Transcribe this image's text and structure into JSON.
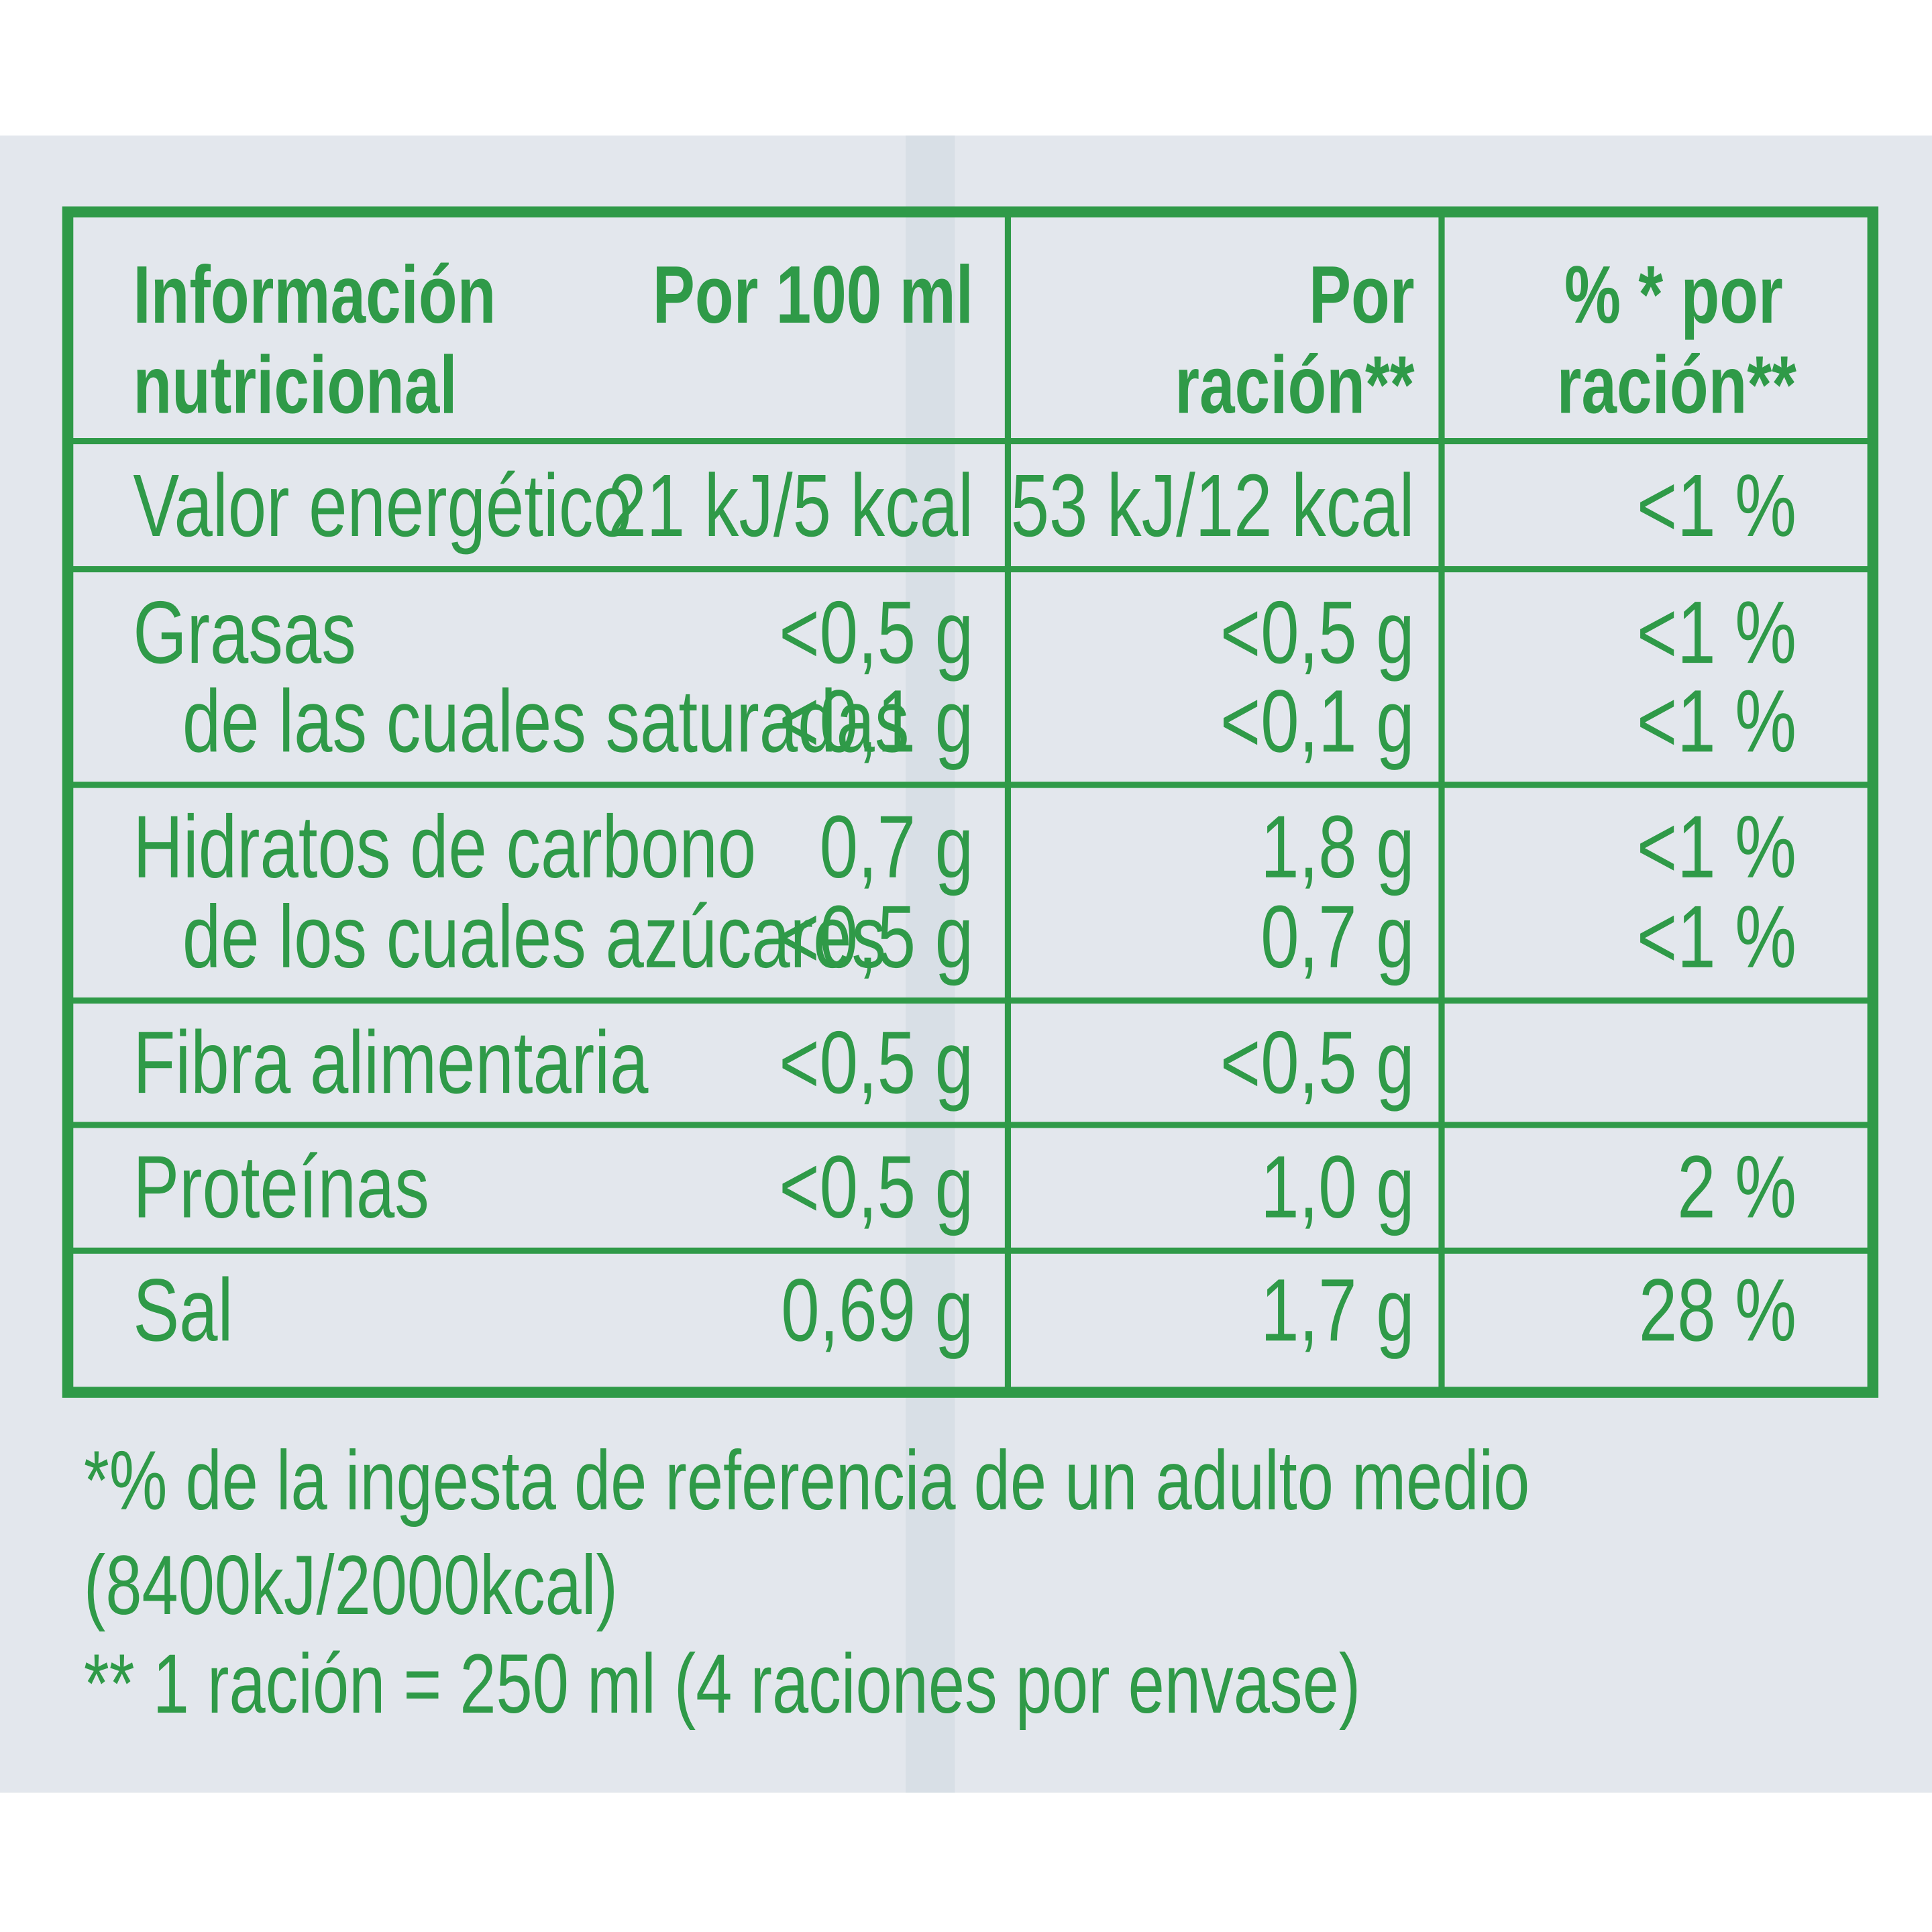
{
  "header": {
    "title": [
      "Información",
      "nutricional"
    ],
    "col1": "Por 100 ml",
    "col2": [
      "Por",
      "ración**"
    ],
    "col3": [
      "% * por",
      "ración**"
    ]
  },
  "rows": [
    {
      "label": "Valor energético",
      "per_100ml": "21 kJ/5 kcal",
      "per_serving": "53 kJ/12 kcal",
      "percent": "<1 %"
    },
    {
      "label": "Grasas",
      "per_100ml": "<0,5 g",
      "per_serving": "<0,5 g",
      "percent": "<1 %"
    },
    {
      "label": "de las cuales saturadas",
      "per_100ml": "<0,1 g",
      "per_serving": "<0,1 g",
      "percent": "<1 %"
    },
    {
      "label": "Hidratos de carbono",
      "per_100ml": "0,7 g",
      "per_serving": "1,8 g",
      "percent": "<1 %"
    },
    {
      "label": "de los cuales azúcares",
      "per_100ml": "<0,5 g",
      "per_serving": "0,7 g",
      "percent": "<1 %"
    },
    {
      "label": "Fibra alimentaria",
      "per_100ml": "<0,5 g",
      "per_serving": "<0,5 g"
    },
    {
      "label": "Proteínas",
      "per_100ml": "<0,5 g",
      "per_serving": "1,0 g",
      "percent": "2 %"
    },
    {
      "label": "Sal",
      "per_100ml": "0,69 g",
      "per_serving": "1,7 g",
      "percent": "28 %"
    }
  ],
  "footnotes": [
    "*% de la ingesta de referencia de un adulto medio",
    "(8400kJ/2000kcal)",
    "** 1 ración = 250 ml (4 raciones por envase)"
  ]
}
